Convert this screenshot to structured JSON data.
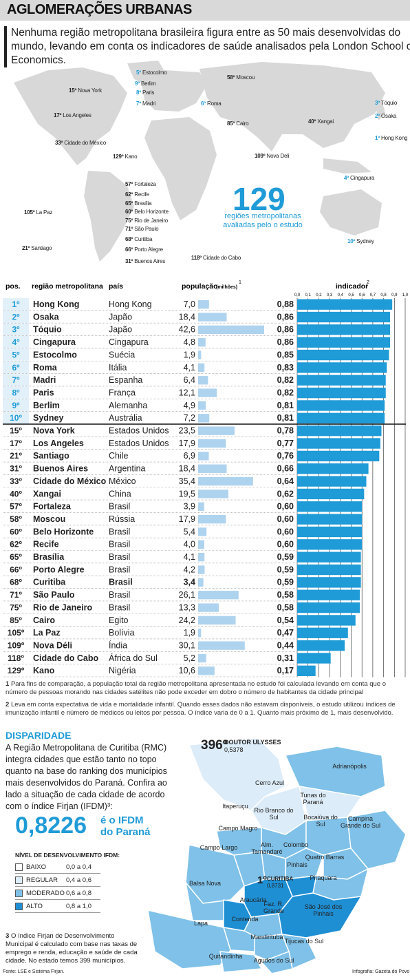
{
  "header": {
    "title": "AGLOMERAÇÕES URBANAS",
    "intro": "Nenhuma região metropolitana brasileira figura entre as 50 mais desenvolvidas do mundo, levando em conta os indicadores de saúde analisados pela London School of Economics."
  },
  "map": {
    "total_number": "129",
    "total_label": "regiões metropolitanas avaliadas pelo o estudo",
    "cities": [
      {
        "rank": "5º",
        "name": "Estocolmo",
        "highlight": true
      },
      {
        "rank": "9º",
        "name": "Berlim",
        "highlight": true
      },
      {
        "rank": "8º",
        "name": "Paris",
        "highlight": true
      },
      {
        "rank": "7º",
        "name": "Madri",
        "highlight": true
      },
      {
        "rank": "6º",
        "name": "Roma",
        "highlight": true
      },
      {
        "rank": "58º",
        "name": "Moscou",
        "highlight": false
      },
      {
        "rank": "15º",
        "name": "Nova York",
        "highlight": false
      },
      {
        "rank": "17º",
        "name": "Los Angeles",
        "highlight": false
      },
      {
        "rank": "33º",
        "name": "Cidade do México",
        "highlight": false
      },
      {
        "rank": "85º",
        "name": "Cairo",
        "highlight": false
      },
      {
        "rank": "40º",
        "name": "Xangai",
        "highlight": false
      },
      {
        "rank": "3º",
        "name": "Tóquio",
        "highlight": true
      },
      {
        "rank": "2º",
        "name": "Osaka",
        "highlight": true
      },
      {
        "rank": "1º",
        "name": "Hong Kong",
        "highlight": true
      },
      {
        "rank": "129º",
        "name": "Kano",
        "highlight": false
      },
      {
        "rank": "109º",
        "name": "Nova Deli",
        "highlight": false
      },
      {
        "rank": "4º",
        "name": "Cingapura",
        "highlight": true
      },
      {
        "rank": "57º",
        "name": "Fortaleza",
        "highlight": false
      },
      {
        "rank": "62º",
        "name": "Recife",
        "highlight": false
      },
      {
        "rank": "65º",
        "name": "Brasília",
        "highlight": false
      },
      {
        "rank": "60º",
        "name": "Belo Horizonte",
        "highlight": false
      },
      {
        "rank": "75º",
        "name": "Rio de Janeiro",
        "highlight": false
      },
      {
        "rank": "71º",
        "name": "São Paulo",
        "highlight": false
      },
      {
        "rank": "68º",
        "name": "Curitiba",
        "highlight": false
      },
      {
        "rank": "66º",
        "name": "Porto Alegre",
        "highlight": false
      },
      {
        "rank": "31º",
        "name": "Buenos Aires",
        "highlight": false
      },
      {
        "rank": "105º",
        "name": "La Paz",
        "highlight": false
      },
      {
        "rank": "21º",
        "name": "Santiago",
        "highlight": false
      },
      {
        "rank": "118º",
        "name": "Cidade do Cabo",
        "highlight": false
      },
      {
        "rank": "10º",
        "name": "Sydney",
        "highlight": true
      }
    ]
  },
  "chart_data": {
    "type": "table",
    "columns": {
      "pos": "pos.",
      "region": "região metropolitana",
      "country": "país",
      "population": "população",
      "population_unit": "(milhões)",
      "population_note": "1",
      "indicator": "indicador",
      "indicator_note": "2"
    },
    "indicator_axis": {
      "min": 0,
      "max": 1,
      "ticks": [
        "0,0",
        "0,1",
        "0,2",
        "0,3",
        "0,4",
        "0,5",
        "0,6",
        "0,7",
        "0,8",
        "0,9",
        "1,0"
      ]
    },
    "population_max": 42.6,
    "rows": [
      {
        "pos": "1º",
        "region": "Hong Kong",
        "country": "Hong Kong",
        "population": 7.0,
        "population_text": "7,0",
        "indicator": 0.88,
        "indicator_text": "0,88",
        "top10": true
      },
      {
        "pos": "2º",
        "region": "Osaka",
        "country": "Japão",
        "population": 18.4,
        "population_text": "18,4",
        "indicator": 0.86,
        "indicator_text": "0,86",
        "top10": true
      },
      {
        "pos": "3º",
        "region": "Tóquio",
        "country": "Japão",
        "population": 42.6,
        "population_text": "42,6",
        "indicator": 0.86,
        "indicator_text": "0,86",
        "top10": true
      },
      {
        "pos": "4º",
        "region": "Cingapura",
        "country": "Cingapura",
        "population": 4.8,
        "population_text": "4,8",
        "indicator": 0.86,
        "indicator_text": "0,86",
        "top10": true
      },
      {
        "pos": "5º",
        "region": "Estocolmo",
        "country": "Suécia",
        "population": 1.9,
        "population_text": "1,9",
        "indicator": 0.85,
        "indicator_text": "0,85",
        "top10": true
      },
      {
        "pos": "6º",
        "region": "Roma",
        "country": "Itália",
        "population": 4.1,
        "population_text": "4,1",
        "indicator": 0.83,
        "indicator_text": "0,83",
        "top10": true
      },
      {
        "pos": "7º",
        "region": "Madri",
        "country": "Espanha",
        "population": 6.4,
        "population_text": "6,4",
        "indicator": 0.82,
        "indicator_text": "0,82",
        "top10": true
      },
      {
        "pos": "8º",
        "region": "Paris",
        "country": "França",
        "population": 12.1,
        "population_text": "12,1",
        "indicator": 0.82,
        "indicator_text": "0,82",
        "top10": true
      },
      {
        "pos": "9º",
        "region": "Berlim",
        "country": "Alemanha",
        "population": 4.9,
        "population_text": "4,9",
        "indicator": 0.81,
        "indicator_text": "0,81",
        "top10": true
      },
      {
        "pos": "10º",
        "region": "Sydney",
        "country": "Austrália",
        "population": 7.2,
        "population_text": "7,2",
        "indicator": 0.81,
        "indicator_text": "0,81",
        "top10": true
      },
      {
        "pos": "15º",
        "region": "Nova York",
        "country": "Estados Unidos",
        "population": 23.5,
        "population_text": "23,5",
        "indicator": 0.78,
        "indicator_text": "0,78",
        "top10": false
      },
      {
        "pos": "17º",
        "region": "Los Angeles",
        "country": "Estados Unidos",
        "population": 17.9,
        "population_text": "17,9",
        "indicator": 0.77,
        "indicator_text": "0,77",
        "top10": false
      },
      {
        "pos": "21º",
        "region": "Santiago",
        "country": "Chile",
        "population": 6.9,
        "population_text": "6,9",
        "indicator": 0.76,
        "indicator_text": "0,76",
        "top10": false
      },
      {
        "pos": "31º",
        "region": "Buenos Aires",
        "country": "Argentina",
        "population": 18.4,
        "population_text": "18,4",
        "indicator": 0.66,
        "indicator_text": "0,66",
        "top10": false
      },
      {
        "pos": "33º",
        "region": "Cidade do México",
        "country": "México",
        "population": 35.4,
        "population_text": "35,4",
        "indicator": 0.64,
        "indicator_text": "0,64",
        "top10": false
      },
      {
        "pos": "40º",
        "region": "Xangai",
        "country": "China",
        "population": 19.5,
        "population_text": "19,5",
        "indicator": 0.62,
        "indicator_text": "0,62",
        "top10": false
      },
      {
        "pos": "57º",
        "region": "Fortaleza",
        "country": "Brasil",
        "population": 3.9,
        "population_text": "3,9",
        "indicator": 0.6,
        "indicator_text": "0,60",
        "top10": false
      },
      {
        "pos": "58º",
        "region": "Moscou",
        "country": "Rússia",
        "population": 17.9,
        "population_text": "17,9",
        "indicator": 0.6,
        "indicator_text": "0,60",
        "top10": false
      },
      {
        "pos": "60º",
        "region": "Belo Horizonte",
        "country": "Brasil",
        "population": 5.4,
        "population_text": "5,4",
        "indicator": 0.6,
        "indicator_text": "0,60",
        "top10": false
      },
      {
        "pos": "62º",
        "region": "Recife",
        "country": "Brasil",
        "population": 4.0,
        "population_text": "4,0",
        "indicator": 0.6,
        "indicator_text": "0,60",
        "top10": false
      },
      {
        "pos": "65º",
        "region": "Brasília",
        "country": "Brasil",
        "population": 4.1,
        "population_text": "4,1",
        "indicator": 0.59,
        "indicator_text": "0,59",
        "top10": false
      },
      {
        "pos": "66º",
        "region": "Porto Alegre",
        "country": "Brasil",
        "population": 4.2,
        "population_text": "4,2",
        "indicator": 0.59,
        "indicator_text": "0,59",
        "top10": false
      },
      {
        "pos": "68º",
        "region": "Curitiba",
        "country": "Brasil",
        "population": 3.4,
        "population_text": "3,4",
        "indicator": 0.59,
        "indicator_text": "0,59",
        "top10": false,
        "bold": true
      },
      {
        "pos": "71º",
        "region": "São Paulo",
        "country": "Brasil",
        "population": 26.1,
        "population_text": "26,1",
        "indicator": 0.58,
        "indicator_text": "0,58",
        "top10": false
      },
      {
        "pos": "75º",
        "region": "Rio de Janeiro",
        "country": "Brasil",
        "population": 13.3,
        "population_text": "13,3",
        "indicator": 0.58,
        "indicator_text": "0,58",
        "top10": false
      },
      {
        "pos": "85º",
        "region": "Cairo",
        "country": "Egito",
        "population": 24.2,
        "population_text": "24,2",
        "indicator": 0.54,
        "indicator_text": "0,54",
        "top10": false
      },
      {
        "pos": "105º",
        "region": "La Paz",
        "country": "Bolívia",
        "population": 1.9,
        "population_text": "1,9",
        "indicator": 0.47,
        "indicator_text": "0,47",
        "top10": false
      },
      {
        "pos": "109º",
        "region": "Nova Déli",
        "country": "Índia",
        "population": 30.1,
        "population_text": "30,1",
        "indicator": 0.44,
        "indicator_text": "0,44",
        "top10": false
      },
      {
        "pos": "118º",
        "region": "Cidade do Cabo",
        "country": "África do Sul",
        "population": 5.2,
        "population_text": "5,2",
        "indicator": 0.31,
        "indicator_text": "0,31",
        "top10": false
      },
      {
        "pos": "129º",
        "region": "Kano",
        "country": "Nigéria",
        "population": 10.6,
        "population_text": "10,6",
        "indicator": 0.17,
        "indicator_text": "0,17",
        "top10": false
      }
    ]
  },
  "footnotes": {
    "n1_mark": "1",
    "n1": "Para fins de comparação, a população total da região metropolitana apresentada no estudo foi calculada levando em conta que o número de pessoas morando nas cidades satélites não pode exceder em dobro o número de habitantes da cidade principal",
    "n2_mark": "2",
    "n2": "Leva em conta expectativa de vida e mortalidade infantil. Quando esses dados não estavam disponíveis, o estudo utilizou índices de imunização infantil e número de médicos ou leitos por pessoa. O índice varia de 0 a 1. Quanto mais próximo de 1, mais desenvolvido."
  },
  "disparidade": {
    "title": "DISPARIDADE",
    "text": "A Região Metropolitana de Curitiba (RMC) integra cidades que estão tanto no topo quanto na base do ranking dos municípios mais desenvolvidos do Paraná. Confira ao lado a situação de cada cidade de acordo com o índice Firjan (IFDM)³:",
    "ifdm_value": "0,8226",
    "ifdm_label": "é o IFDM do Paraná",
    "legend_title": "NÍVEL DE DESENVOLVIMENTO IFDM:",
    "legend": [
      {
        "name": "BAIXO",
        "range": "0,0 a 0,4",
        "color": "#ffffff"
      },
      {
        "name": "REGULAR",
        "range": "0,4 a 0,6",
        "color": "#dcecf8"
      },
      {
        "name": "MODERADO",
        "range": "0,6 a 0,8",
        "color": "#7fc1e8"
      },
      {
        "name": "ALTO",
        "range": "0,8 a 1,0",
        "color": "#1f8fd4"
      }
    ],
    "footnote_mark": "3",
    "footnote": "O índice Firjan de Desenvolvimento Municipal é calculado com base nas taxas de emprego e renda, educação e saúde de cada cidade. No estado temos 399 municípios.",
    "worst_rank": "396º",
    "worst_name": "DOUTOR ULYSSES",
    "worst_value": "0,5378",
    "best_rank": "1º",
    "best_name": "CURITIBA",
    "best_value": "0,8731",
    "municipalities": [
      "Adrianópolis",
      "Cerro Azul",
      "Tunas do Paraná",
      "Itaperuçu",
      "Rio Branco do Sul",
      "Bocaiúva do Sul",
      "Campina Grande do Sul",
      "Campo Magro",
      "Alm. Tamandaré",
      "Colombo",
      "Quatro Barras",
      "Campo Largo",
      "Pinhais",
      "Piraquara",
      "Balsa Nova",
      "Araucária",
      "Faz. R. Grande",
      "São José dos Pinhais",
      "Contenda",
      "Lapa",
      "Mandirituba",
      "Tijucas do Sul",
      "Quitandinha",
      "Agudos do Sul"
    ]
  },
  "sources": {
    "source": "Fonte: LSE e Sistema Firjan.",
    "credit": "Infografia: Gazeta do Povo"
  }
}
